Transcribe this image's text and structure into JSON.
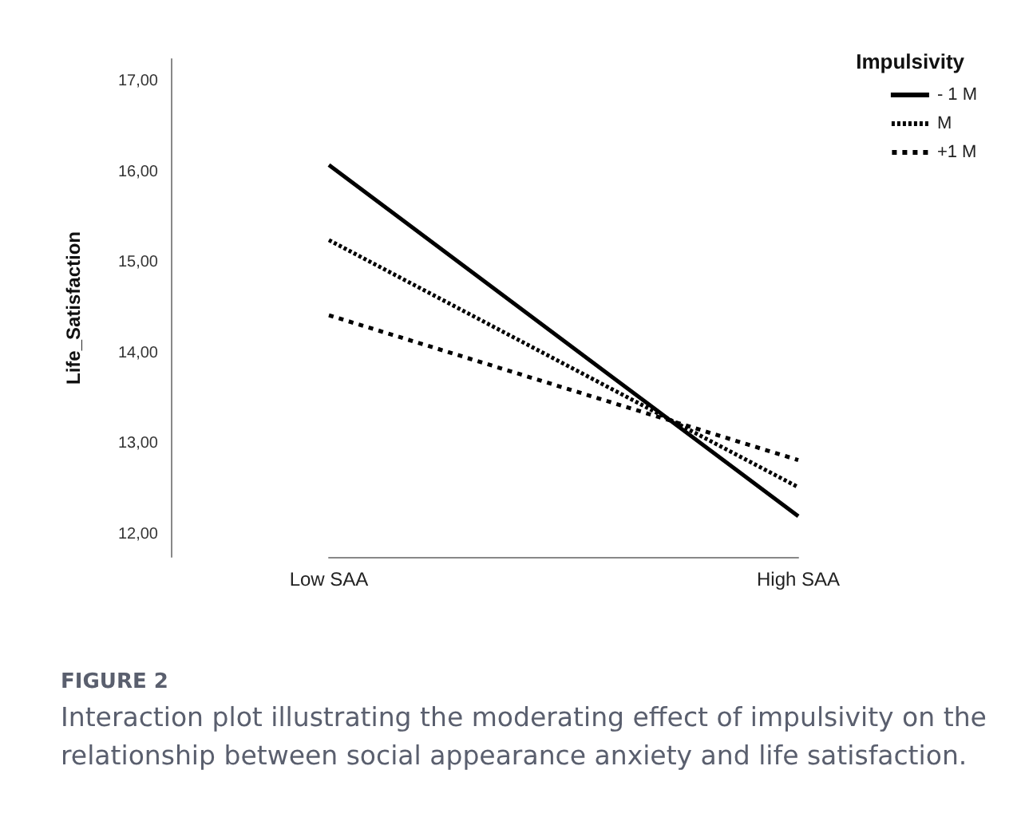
{
  "chart_data": {
    "type": "line",
    "ylabel": "Life_Satisfaction",
    "legend_title": "Impulsivity",
    "legend": "top right",
    "grid": false,
    "marker": "none",
    "categories": [
      "Low SAA",
      "High SAA"
    ],
    "ylim": [
      11.75,
      17.25
    ],
    "yticks": [
      {
        "value": 12,
        "label": "12,00"
      },
      {
        "value": 13,
        "label": "13,00"
      },
      {
        "value": 14,
        "label": "14,00"
      },
      {
        "value": 15,
        "label": "15,00"
      },
      {
        "value": 16,
        "label": "16,00"
      },
      {
        "value": 17,
        "label": "17,00"
      }
    ],
    "series": [
      {
        "name": "- 1 M",
        "color": "#000000",
        "line_style": "solid",
        "values": [
          16.08,
          12.2
        ]
      },
      {
        "name": "M",
        "color": "#000000",
        "line_style": "dotted",
        "values": [
          15.25,
          12.52
        ]
      },
      {
        "name": "+1 M",
        "color": "#000000",
        "line_style": "dashed",
        "values": [
          14.42,
          12.82
        ]
      }
    ],
    "annotations": [
      "FIGURE 2",
      "Interaction plot illustrating the moderating effect of impulsivity on the relationship between social appearance anxiety and life satisfaction."
    ]
  }
}
